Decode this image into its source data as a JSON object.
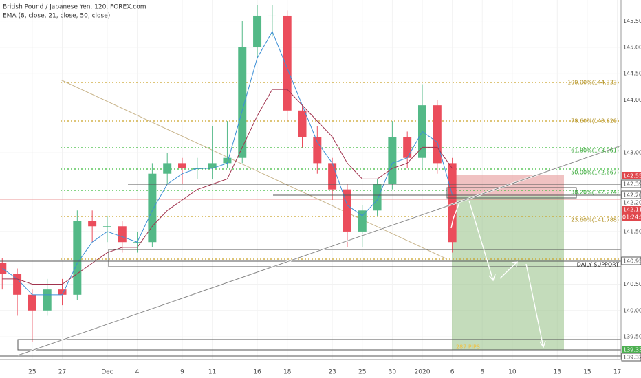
{
  "chart_data": {
    "type": "candlestick",
    "title": "British Pound / Japanese Yen, 120, FOREX.com",
    "indicator": "EMA (8, close, 21, close, 50, close)",
    "x": [
      -2,
      -1,
      0,
      1,
      2,
      3,
      4,
      5,
      6,
      7,
      8,
      9,
      10,
      11,
      12,
      13,
      14,
      15,
      16,
      17,
      18,
      19,
      20,
      21,
      22,
      23,
      24,
      25,
      26,
      27,
      28
    ],
    "open": [
      140.9,
      140.7,
      140.3,
      140.0,
      140.4,
      140.3,
      141.7,
      141.6,
      141.6,
      141.3,
      141.3,
      142.6,
      142.8,
      142.7,
      142.7,
      142.8,
      142.9,
      145.0,
      145.6,
      145.6,
      143.8,
      143.3,
      142.8,
      142.3,
      141.5,
      141.9,
      142.4,
      143.3,
      142.9,
      143.9,
      142.8
    ],
    "high": [
      141.0,
      140.8,
      140.4,
      140.6,
      140.6,
      141.9,
      141.9,
      141.8,
      141.7,
      141.5,
      142.8,
      143.0,
      142.9,
      142.9,
      143.5,
      143.6,
      145.5,
      145.8,
      145.8,
      145.7,
      143.9,
      143.5,
      142.9,
      142.4,
      142.0,
      142.5,
      143.6,
      143.4,
      144.3,
      144.0,
      142.9
    ],
    "low": [
      140.4,
      139.9,
      139.4,
      139.9,
      140.1,
      140.2,
      141.3,
      141.3,
      141.1,
      141.1,
      141.2,
      142.4,
      142.4,
      142.5,
      142.5,
      142.7,
      142.8,
      144.8,
      145.2,
      143.6,
      143.1,
      142.6,
      142.1,
      141.2,
      141.2,
      141.8,
      142.3,
      142.7,
      142.7,
      142.6,
      141.1
    ],
    "close": [
      140.7,
      140.3,
      140.0,
      140.4,
      140.3,
      141.7,
      141.6,
      141.6,
      141.3,
      141.3,
      142.6,
      142.8,
      142.7,
      142.7,
      142.8,
      142.9,
      145.0,
      145.6,
      145.6,
      143.8,
      143.3,
      142.8,
      142.3,
      141.5,
      141.9,
      142.4,
      143.3,
      142.9,
      143.9,
      142.8,
      141.3
    ],
    "up_color": "#53b987",
    "down_color": "#eb4d5c",
    "overlays": [
      {
        "color": "#3d8fd6",
        "values": [
          140.8,
          140.6,
          140.3,
          140.3,
          140.3,
          140.9,
          141.3,
          141.5,
          141.4,
          141.3,
          141.9,
          142.4,
          142.6,
          142.7,
          142.7,
          142.8,
          143.8,
          144.8,
          145.3,
          144.6,
          143.9,
          143.2,
          142.8,
          142.0,
          141.8,
          142.1,
          142.8,
          142.9,
          143.4,
          143.2,
          142.2
        ]
      },
      {
        "color": "#a1334e",
        "values": [
          140.6,
          140.6,
          140.5,
          140.5,
          140.5,
          140.7,
          140.9,
          141.1,
          141.2,
          141.2,
          141.6,
          141.9,
          142.1,
          142.3,
          142.4,
          142.5,
          143.1,
          143.7,
          144.2,
          144.2,
          143.9,
          143.6,
          143.3,
          142.8,
          142.5,
          142.5,
          142.7,
          142.8,
          143.1,
          143.1,
          142.7
        ]
      }
    ],
    "xlim": [
      -2.15,
      39.25
    ],
    "xticks": [
      {
        "value": 0,
        "label": "25"
      },
      {
        "value": 2,
        "label": "27"
      },
      {
        "value": 5,
        "label": "Dec"
      },
      {
        "value": 7,
        "label": "4"
      },
      {
        "value": 10,
        "label": "9"
      },
      {
        "value": 12,
        "label": "11"
      },
      {
        "value": 15,
        "label": "16"
      },
      {
        "value": 17,
        "label": "18"
      },
      {
        "value": 20,
        "label": "23"
      },
      {
        "value": 22,
        "label": "25"
      },
      {
        "value": 24,
        "label": "30"
      },
      {
        "value": 26,
        "label": "2020"
      },
      {
        "value": 28,
        "label": "6"
      },
      {
        "value": 30,
        "label": "8"
      },
      {
        "value": 32,
        "label": "10"
      },
      {
        "value": 35,
        "label": "13"
      },
      {
        "value": 37,
        "label": "15"
      },
      {
        "value": 39,
        "label": "17"
      }
    ],
    "ylim": [
      139.07,
      145.9
    ],
    "yticks": [
      {
        "value": 145.5,
        "label": "145.500"
      },
      {
        "value": 145,
        "label": "145.000"
      },
      {
        "value": 144.5,
        "label": "144.500"
      },
      {
        "value": 144,
        "label": "144.000"
      },
      {
        "value": 143,
        "label": "143.000"
      },
      {
        "value": 141.5,
        "label": "141.500"
      },
      {
        "value": 140.5,
        "label": "140.500"
      },
      {
        "value": 140,
        "label": "140.000"
      },
      {
        "value": 139.5,
        "label": "139.500"
      }
    ]
  },
  "annotations": {
    "fib_levels": [
      "100.00%(144.333)",
      "78.60%(143.620)",
      "61.80%(143.061)",
      "50.00%(142.667)",
      "38.20%(142.274)",
      "23.60%(141.788)"
    ],
    "price_tags": [
      "142.559",
      "142.393",
      "142.207",
      "142.206",
      "142.111",
      "01:24:58",
      "140.955",
      "139.331",
      "139.321"
    ],
    "support_label": "DAILY SUPPORT",
    "pips_label": "287 PIPS"
  }
}
